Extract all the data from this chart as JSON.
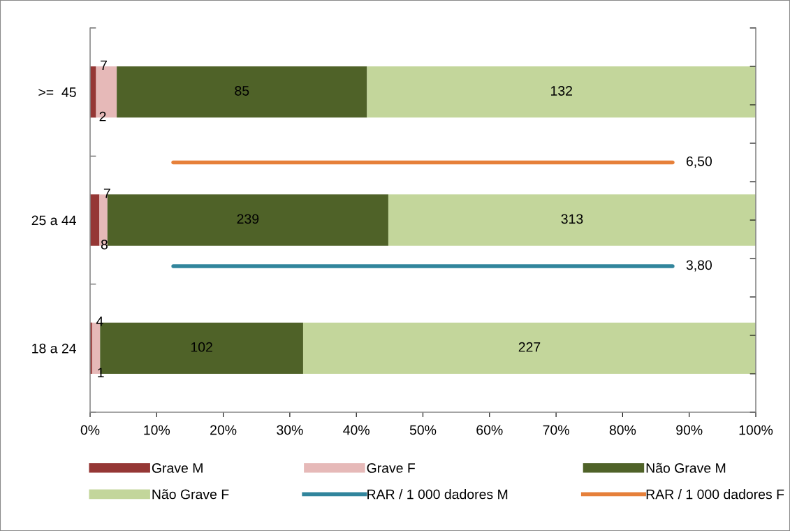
{
  "chart_data": {
    "type": "bar",
    "orientation": "horizontal",
    "stacked": true,
    "categories": [
      ">=  45",
      "25 a 44",
      "18 a 24"
    ],
    "series": [
      {
        "name": "Grave M",
        "color": "#953735",
        "values": [
          0.9,
          1.4,
          0.3
        ]
      },
      {
        "name": "Grave F",
        "color": "#e6b9b8",
        "values": [
          3.1,
          1.2,
          1.2
        ]
      },
      {
        "name": "Não Grave M",
        "color": "#4f6228",
        "values": [
          37.6,
          42.2,
          30.5
        ]
      },
      {
        "name": "Não Grave F",
        "color": "#c3d69b",
        "values": [
          58.4,
          55.2,
          68.0
        ]
      },
      {
        "name": "RAR / 1 000 dadores M",
        "type": "line",
        "color": "#31859c",
        "values": [
          null,
          null,
          null
        ]
      },
      {
        "name": "RAR / 1 000 dadores F",
        "type": "line",
        "color": "#e6803a",
        "values": [
          null,
          null,
          null
        ]
      }
    ],
    "ref_lines": [
      {
        "axis": "y2",
        "value": 3.8,
        "label": "3,80",
        "color": "#31859c"
      },
      {
        "axis": "y2",
        "value": 6.5,
        "label": "6,50",
        "color": "#e6803a"
      }
    ],
    "annotations": [
      "2",
      "7",
      "85",
      "132",
      "8",
      "7",
      "239",
      "313",
      "1",
      "4",
      "102",
      "227"
    ],
    "xlim": [
      0,
      100
    ],
    "xticks": [
      {
        "value": 0,
        "label": "0%"
      },
      {
        "value": 10,
        "label": "10%"
      },
      {
        "value": 20,
        "label": "20%"
      },
      {
        "value": 30,
        "label": "30%"
      },
      {
        "value": 40,
        "label": "40%"
      },
      {
        "value": 50,
        "label": "50%"
      },
      {
        "value": 60,
        "label": "60%"
      },
      {
        "value": 70,
        "label": "70%"
      },
      {
        "value": 80,
        "label": "80%"
      },
      {
        "value": 90,
        "label": "90%"
      },
      {
        "value": 100,
        "label": "100%"
      }
    ],
    "y2lim": [
      0,
      10
    ],
    "y2ticks": [
      {
        "value": 0,
        "label": null
      },
      {
        "value": 1,
        "label": null
      },
      {
        "value": 2,
        "label": null
      },
      {
        "value": 3,
        "label": null
      },
      {
        "value": 4,
        "label": null
      },
      {
        "value": 5,
        "label": null
      },
      {
        "value": 6,
        "label": null
      },
      {
        "value": 7,
        "label": null
      },
      {
        "value": 8,
        "label": null
      },
      {
        "value": 9,
        "label": null
      },
      {
        "value": 10,
        "label": null
      }
    ],
    "grid": false,
    "legend": "bottom"
  }
}
